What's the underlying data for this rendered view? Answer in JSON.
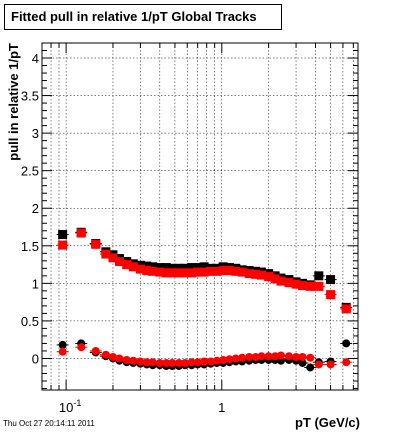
{
  "title": "Fitted pull in relative 1/pT  Global Tracks",
  "timestamp": "Thu Oct 27 20:14:11 2011",
  "chart_data": {
    "type": "scatter",
    "xlabel": "pT (GeV/c)",
    "ylabel": "pull in relative 1/pT",
    "xscale": "log",
    "xlim": [
      0.07,
      7.5
    ],
    "ylim": [
      -0.42,
      4.2
    ],
    "grid": true,
    "x_ticks": [
      {
        "value": 0.1,
        "label": "10^-1"
      },
      {
        "value": 1,
        "label": "1"
      }
    ],
    "y_ticks": [
      {
        "value": 0,
        "label": "0"
      },
      {
        "value": 0.5,
        "label": "0.5"
      },
      {
        "value": 1,
        "label": "1"
      },
      {
        "value": 1.5,
        "label": "1.5"
      },
      {
        "value": 2,
        "label": "2"
      },
      {
        "value": 2.5,
        "label": "2.5"
      },
      {
        "value": 3,
        "label": "3"
      },
      {
        "value": 3.5,
        "label": "3.5"
      },
      {
        "value": 4,
        "label": "4"
      }
    ],
    "series": [
      {
        "marker": "square",
        "color": "#000000",
        "x": [
          0.095,
          0.125,
          0.155,
          0.18,
          0.2,
          0.22,
          0.245,
          0.27,
          0.3,
          0.33,
          0.36,
          0.4,
          0.44,
          0.48,
          0.53,
          0.58,
          0.64,
          0.7,
          0.77,
          0.85,
          0.93,
          1.02,
          1.12,
          1.23,
          1.35,
          1.5,
          1.65,
          1.8,
          2.0,
          2.2,
          2.4,
          2.7,
          3.0,
          3.3,
          3.7,
          4.2,
          5.0,
          6.3
        ],
        "y": [
          1.65,
          1.68,
          1.53,
          1.42,
          1.38,
          1.33,
          1.29,
          1.26,
          1.24,
          1.23,
          1.22,
          1.21,
          1.21,
          1.2,
          1.2,
          1.2,
          1.21,
          1.21,
          1.22,
          1.2,
          1.2,
          1.22,
          1.21,
          1.2,
          1.18,
          1.17,
          1.16,
          1.15,
          1.13,
          1.1,
          1.07,
          1.05,
          1.02,
          1.0,
          0.98,
          1.1,
          1.05,
          0.68
        ]
      },
      {
        "marker": "square",
        "color": "#ff0000",
        "x": [
          0.095,
          0.125,
          0.155,
          0.18,
          0.2,
          0.22,
          0.245,
          0.27,
          0.3,
          0.33,
          0.36,
          0.4,
          0.44,
          0.48,
          0.53,
          0.58,
          0.64,
          0.7,
          0.77,
          0.85,
          0.93,
          1.02,
          1.12,
          1.23,
          1.35,
          1.5,
          1.65,
          1.8,
          2.0,
          2.2,
          2.4,
          2.7,
          3.0,
          3.3,
          3.7,
          4.2,
          5.0,
          6.3
        ],
        "y": [
          1.51,
          1.67,
          1.52,
          1.39,
          1.34,
          1.29,
          1.25,
          1.22,
          1.19,
          1.17,
          1.16,
          1.15,
          1.14,
          1.14,
          1.14,
          1.14,
          1.14,
          1.15,
          1.15,
          1.16,
          1.16,
          1.17,
          1.17,
          1.16,
          1.15,
          1.13,
          1.12,
          1.11,
          1.09,
          1.06,
          1.03,
          1.01,
          0.99,
          0.97,
          0.96,
          0.96,
          0.85,
          0.66
        ]
      },
      {
        "marker": "circle",
        "color": "#000000",
        "x": [
          0.095,
          0.125,
          0.155,
          0.18,
          0.2,
          0.22,
          0.245,
          0.27,
          0.3,
          0.33,
          0.36,
          0.4,
          0.44,
          0.48,
          0.53,
          0.58,
          0.64,
          0.7,
          0.77,
          0.85,
          0.93,
          1.02,
          1.12,
          1.23,
          1.35,
          1.5,
          1.65,
          1.8,
          2.0,
          2.2,
          2.4,
          2.7,
          3.0,
          3.3,
          3.7,
          4.2,
          5.0,
          6.3
        ],
        "y": [
          0.18,
          0.2,
          0.08,
          0.03,
          0.0,
          -0.03,
          -0.05,
          -0.06,
          -0.07,
          -0.08,
          -0.09,
          -0.09,
          -0.1,
          -0.1,
          -0.1,
          -0.09,
          -0.09,
          -0.08,
          -0.08,
          -0.07,
          -0.06,
          -0.06,
          -0.05,
          -0.04,
          -0.04,
          -0.03,
          -0.02,
          -0.02,
          -0.02,
          -0.02,
          -0.03,
          -0.02,
          -0.03,
          -0.06,
          -0.12,
          -0.05,
          -0.04,
          0.2
        ]
      },
      {
        "marker": "circle",
        "color": "#ff0000",
        "x": [
          0.095,
          0.125,
          0.155,
          0.18,
          0.2,
          0.22,
          0.245,
          0.27,
          0.3,
          0.33,
          0.36,
          0.4,
          0.44,
          0.48,
          0.53,
          0.58,
          0.64,
          0.7,
          0.77,
          0.85,
          0.93,
          1.02,
          1.12,
          1.23,
          1.35,
          1.5,
          1.65,
          1.8,
          2.0,
          2.2,
          2.4,
          2.7,
          3.0,
          3.3,
          3.7,
          4.2,
          5.0,
          6.3
        ],
        "y": [
          0.09,
          0.15,
          0.1,
          0.05,
          0.02,
          0.0,
          -0.02,
          -0.03,
          -0.04,
          -0.05,
          -0.05,
          -0.06,
          -0.06,
          -0.06,
          -0.06,
          -0.06,
          -0.05,
          -0.05,
          -0.04,
          -0.04,
          -0.03,
          -0.02,
          -0.01,
          0.0,
          0.01,
          0.02,
          0.02,
          0.03,
          0.03,
          0.03,
          0.04,
          0.03,
          0.02,
          0.02,
          0.01,
          -0.08,
          -0.08,
          -0.05
        ]
      }
    ]
  }
}
